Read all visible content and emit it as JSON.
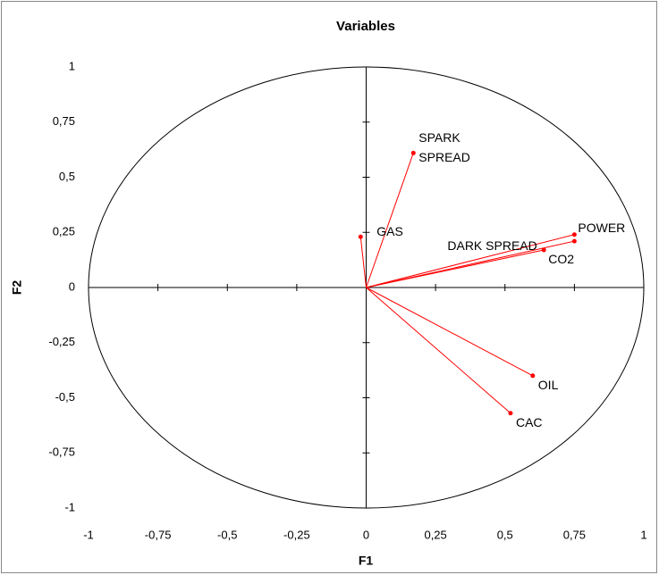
{
  "chart_data": {
    "type": "scatter",
    "title": "Variables",
    "x_label": "F1",
    "y_label": "F2",
    "labels": [
      "SPARK SPREAD",
      "GAS",
      "POWER",
      "DARK SPREAD",
      "CO2",
      "OIL",
      "CAC"
    ],
    "x": [
      0.17,
      -0.02,
      0.75,
      0.75,
      0.64,
      0.6,
      0.52
    ],
    "values": [
      0.61,
      0.23,
      0.24,
      0.21,
      0.17,
      -0.4,
      -0.57
    ],
    "color": "#ff0000",
    "xlim": [
      -1,
      1
    ],
    "ylim": [
      -1,
      1
    ],
    "xticks": [
      -1,
      {
        "value": -0.75,
        "label": "-0,75"
      },
      {
        "value": -0.5,
        "label": "-0,5"
      },
      {
        "value": -0.25,
        "label": "-0,25"
      },
      0,
      {
        "value": 0.25,
        "label": "0,25"
      },
      {
        "value": 0.5,
        "label": "0,5"
      },
      {
        "value": 0.75,
        "label": "0,75"
      },
      1
    ],
    "yticks": [
      -1,
      {
        "value": -0.75,
        "label": "-0,75"
      },
      {
        "value": -0.5,
        "label": "-0,5"
      },
      {
        "value": -0.25,
        "label": "-0,25"
      },
      0,
      {
        "value": 0.25,
        "label": "0,25"
      },
      {
        "value": 0.5,
        "label": "0,5"
      },
      {
        "value": 0.75,
        "label": "0,75"
      },
      1
    ]
  }
}
